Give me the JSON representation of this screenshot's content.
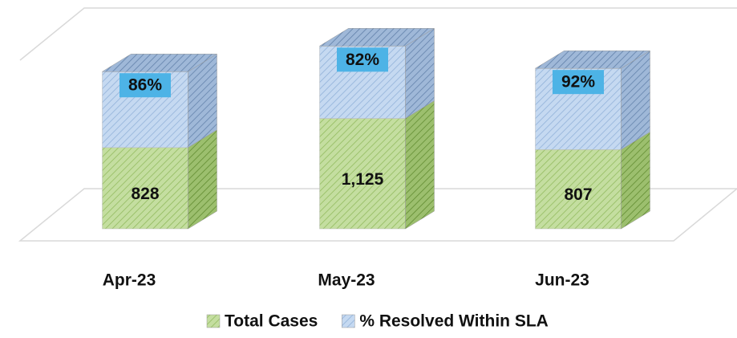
{
  "chart_data": {
    "type": "bar3d_stacked",
    "categories": [
      "Apr-23",
      "May-23",
      "Jun-23"
    ],
    "series": [
      {
        "name": "Total Cases",
        "color": "#c4dea0",
        "values": [
          828,
          1125,
          807
        ],
        "value_labels": [
          "828",
          "1,125",
          "807"
        ]
      },
      {
        "name": "% Resolved Within SLA",
        "color": "#c5d9f1",
        "axis": "y2",
        "values": [
          86,
          82,
          92
        ],
        "value_labels": [
          "86%",
          "82%",
          "92%"
        ]
      }
    ],
    "ylim": [
      0,
      1800
    ],
    "y2lim": [
      0,
      200
    ],
    "legend": "bottom"
  }
}
